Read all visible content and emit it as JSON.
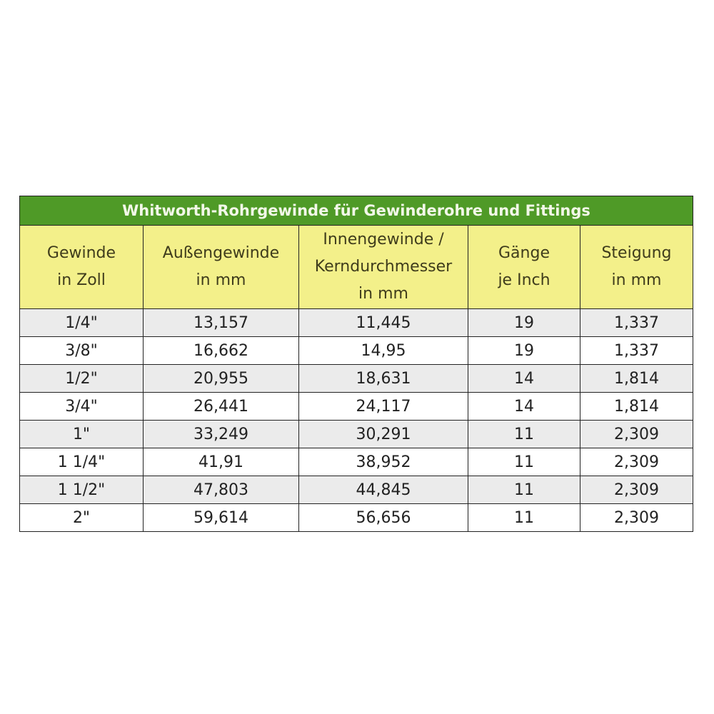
{
  "table": {
    "title": "Whitworth-Rohrgewinde für Gewinderohre und Fittings",
    "headers": [
      [
        "Gewinde",
        "in Zoll"
      ],
      [
        "Außengewinde",
        "in mm"
      ],
      [
        "Innengewinde /",
        "Kerndurchmesser",
        "in mm"
      ],
      [
        "Gänge",
        "je Inch"
      ],
      [
        "Steigung",
        "in mm"
      ]
    ],
    "rows": [
      [
        "1/4\"",
        "13,157",
        "11,445",
        "19",
        "1,337"
      ],
      [
        "3/8\"",
        "16,662",
        "14,95",
        "19",
        "1,337"
      ],
      [
        "1/2\"",
        "20,955",
        "18,631",
        "14",
        "1,814"
      ],
      [
        "3/4\"",
        "26,441",
        "24,117",
        "14",
        "1,814"
      ],
      [
        "1\"",
        "33,249",
        "30,291",
        "11",
        "2,309"
      ],
      [
        "1 1/4\"",
        "41,91",
        "38,952",
        "11",
        "2,309"
      ],
      [
        "1 1/2\"",
        "47,803",
        "44,845",
        "11",
        "2,309"
      ],
      [
        "2\"",
        "59,614",
        "56,656",
        "11",
        "2,309"
      ]
    ],
    "colors": {
      "title_bg": "#4f9a27",
      "header_bg": "#f3f08a",
      "stripe_bg": "#ebebeb"
    }
  }
}
